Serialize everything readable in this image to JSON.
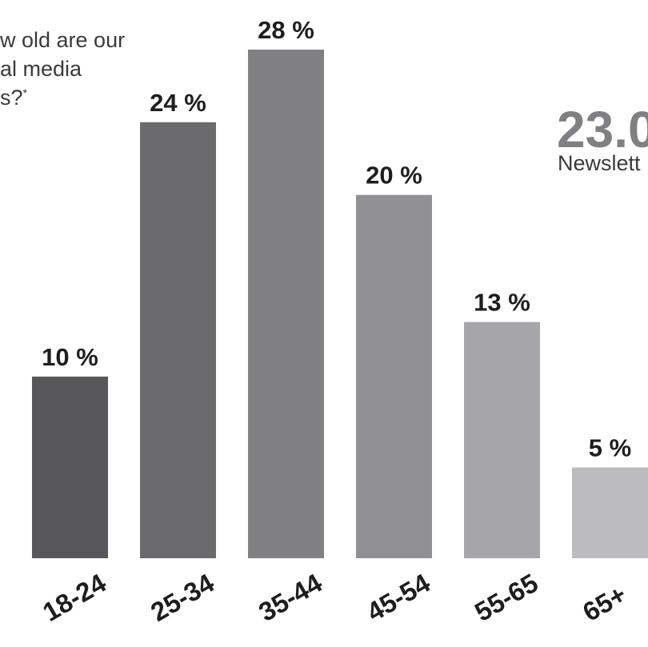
{
  "question_lines": [
    "w old are our",
    "al media",
    "s?"
  ],
  "question_footnote": "*",
  "stat": {
    "number": "23.0",
    "label": "Newslett"
  },
  "colors": [
    "#58585a",
    "#6b6b6e",
    "#808083",
    "#919194",
    "#a6a6a9",
    "#bcbcbf"
  ],
  "chart_data": {
    "type": "bar",
    "categories": [
      "18-24",
      "25-34",
      "35-44",
      "45-54",
      "55-65",
      "65+"
    ],
    "values": [
      10,
      24,
      28,
      20,
      13,
      5
    ],
    "value_labels": [
      "10 %",
      "24 %",
      "28 %",
      "20 %",
      "13 %",
      "5 %"
    ],
    "title": "",
    "xlabel": "",
    "ylabel": "",
    "ylim": [
      0,
      28
    ]
  }
}
